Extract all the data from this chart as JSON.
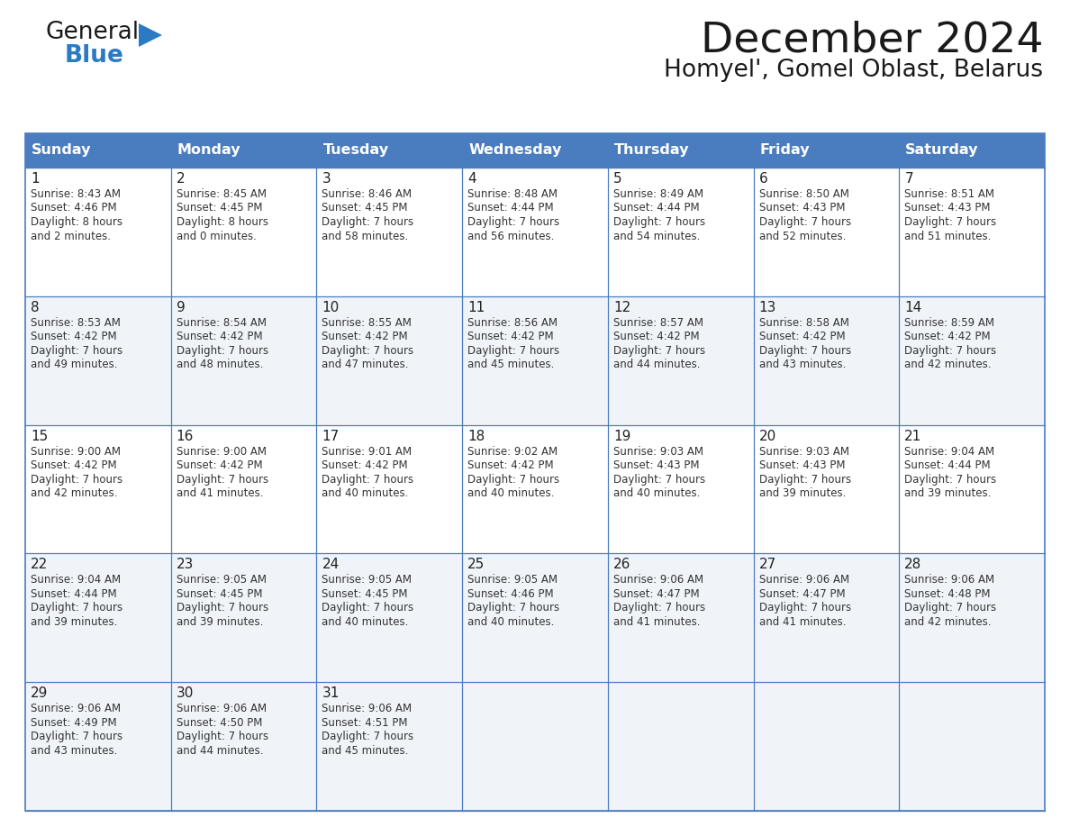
{
  "title": "December 2024",
  "subtitle": "Homyel', Gomel Oblast, Belarus",
  "days_of_week": [
    "Sunday",
    "Monday",
    "Tuesday",
    "Wednesday",
    "Thursday",
    "Friday",
    "Saturday"
  ],
  "header_bg_color": "#4a7dbf",
  "header_text_color": "#FFFFFF",
  "grid_color": "#4a7dbf",
  "row_bg_colors": [
    "#FFFFFF",
    "#f0f4f8",
    "#FFFFFF",
    "#f0f4f8",
    "#f0f4f8"
  ],
  "title_color": "#1a1a1a",
  "subtitle_color": "#1a1a1a",
  "logo_general_color": "#1a1a1a",
  "logo_blue_color": "#2a7ac4",
  "logo_triangle_color": "#2a7ac4",
  "calendar_data": [
    [
      {
        "day": 1,
        "sunrise": "8:43 AM",
        "sunset": "4:46 PM",
        "daylight": "8 hours and 2 minutes"
      },
      {
        "day": 2,
        "sunrise": "8:45 AM",
        "sunset": "4:45 PM",
        "daylight": "8 hours and 0 minutes"
      },
      {
        "day": 3,
        "sunrise": "8:46 AM",
        "sunset": "4:45 PM",
        "daylight": "7 hours and 58 minutes"
      },
      {
        "day": 4,
        "sunrise": "8:48 AM",
        "sunset": "4:44 PM",
        "daylight": "7 hours and 56 minutes"
      },
      {
        "day": 5,
        "sunrise": "8:49 AM",
        "sunset": "4:44 PM",
        "daylight": "7 hours and 54 minutes"
      },
      {
        "day": 6,
        "sunrise": "8:50 AM",
        "sunset": "4:43 PM",
        "daylight": "7 hours and 52 minutes"
      },
      {
        "day": 7,
        "sunrise": "8:51 AM",
        "sunset": "4:43 PM",
        "daylight": "7 hours and 51 minutes"
      }
    ],
    [
      {
        "day": 8,
        "sunrise": "8:53 AM",
        "sunset": "4:42 PM",
        "daylight": "7 hours and 49 minutes"
      },
      {
        "day": 9,
        "sunrise": "8:54 AM",
        "sunset": "4:42 PM",
        "daylight": "7 hours and 48 minutes"
      },
      {
        "day": 10,
        "sunrise": "8:55 AM",
        "sunset": "4:42 PM",
        "daylight": "7 hours and 47 minutes"
      },
      {
        "day": 11,
        "sunrise": "8:56 AM",
        "sunset": "4:42 PM",
        "daylight": "7 hours and 45 minutes"
      },
      {
        "day": 12,
        "sunrise": "8:57 AM",
        "sunset": "4:42 PM",
        "daylight": "7 hours and 44 minutes"
      },
      {
        "day": 13,
        "sunrise": "8:58 AM",
        "sunset": "4:42 PM",
        "daylight": "7 hours and 43 minutes"
      },
      {
        "day": 14,
        "sunrise": "8:59 AM",
        "sunset": "4:42 PM",
        "daylight": "7 hours and 42 minutes"
      }
    ],
    [
      {
        "day": 15,
        "sunrise": "9:00 AM",
        "sunset": "4:42 PM",
        "daylight": "7 hours and 42 minutes"
      },
      {
        "day": 16,
        "sunrise": "9:00 AM",
        "sunset": "4:42 PM",
        "daylight": "7 hours and 41 minutes"
      },
      {
        "day": 17,
        "sunrise": "9:01 AM",
        "sunset": "4:42 PM",
        "daylight": "7 hours and 40 minutes"
      },
      {
        "day": 18,
        "sunrise": "9:02 AM",
        "sunset": "4:42 PM",
        "daylight": "7 hours and 40 minutes"
      },
      {
        "day": 19,
        "sunrise": "9:03 AM",
        "sunset": "4:43 PM",
        "daylight": "7 hours and 40 minutes"
      },
      {
        "day": 20,
        "sunrise": "9:03 AM",
        "sunset": "4:43 PM",
        "daylight": "7 hours and 39 minutes"
      },
      {
        "day": 21,
        "sunrise": "9:04 AM",
        "sunset": "4:44 PM",
        "daylight": "7 hours and 39 minutes"
      }
    ],
    [
      {
        "day": 22,
        "sunrise": "9:04 AM",
        "sunset": "4:44 PM",
        "daylight": "7 hours and 39 minutes"
      },
      {
        "day": 23,
        "sunrise": "9:05 AM",
        "sunset": "4:45 PM",
        "daylight": "7 hours and 39 minutes"
      },
      {
        "day": 24,
        "sunrise": "9:05 AM",
        "sunset": "4:45 PM",
        "daylight": "7 hours and 40 minutes"
      },
      {
        "day": 25,
        "sunrise": "9:05 AM",
        "sunset": "4:46 PM",
        "daylight": "7 hours and 40 minutes"
      },
      {
        "day": 26,
        "sunrise": "9:06 AM",
        "sunset": "4:47 PM",
        "daylight": "7 hours and 41 minutes"
      },
      {
        "day": 27,
        "sunrise": "9:06 AM",
        "sunset": "4:47 PM",
        "daylight": "7 hours and 41 minutes"
      },
      {
        "day": 28,
        "sunrise": "9:06 AM",
        "sunset": "4:48 PM",
        "daylight": "7 hours and 42 minutes"
      }
    ],
    [
      {
        "day": 29,
        "sunrise": "9:06 AM",
        "sunset": "4:49 PM",
        "daylight": "7 hours and 43 minutes"
      },
      {
        "day": 30,
        "sunrise": "9:06 AM",
        "sunset": "4:50 PM",
        "daylight": "7 hours and 44 minutes"
      },
      {
        "day": 31,
        "sunrise": "9:06 AM",
        "sunset": "4:51 PM",
        "daylight": "7 hours and 45 minutes"
      },
      null,
      null,
      null,
      null
    ]
  ]
}
